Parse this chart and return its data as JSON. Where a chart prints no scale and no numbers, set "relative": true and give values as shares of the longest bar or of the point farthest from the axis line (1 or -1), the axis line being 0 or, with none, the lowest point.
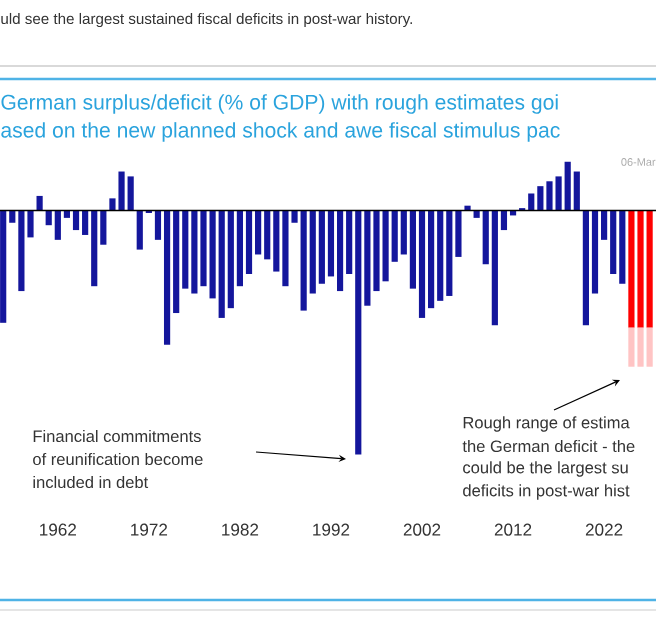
{
  "chart_data": {
    "type": "bar",
    "relative": true,
    "stacked": true,
    "title": "German surplus/deficit (% of GDP) with rough estimates goi",
    "subtitle": "ased on the new planned shock and awe fiscal stimulus pac",
    "annotations": [
      "uld see the largest sustained fiscal deficits in post-war history.",
      "06-Mar",
      "Financial commitments",
      "of reunification become",
      "included in debt",
      "Rough range of estima",
      "the German deficit - the",
      "could be the largest su",
      "deficits in post-war hist"
    ],
    "categories": [
      null,
      null,
      null,
      null,
      null,
      null,
      "1962",
      null,
      null,
      null,
      null,
      null,
      null,
      null,
      null,
      null,
      "1972",
      null,
      null,
      null,
      null,
      null,
      null,
      null,
      null,
      null,
      "1982",
      null,
      null,
      null,
      null,
      null,
      null,
      null,
      null,
      null,
      "1992",
      null,
      null,
      null,
      null,
      null,
      null,
      null,
      null,
      null,
      "2002",
      null,
      null,
      null,
      null,
      null,
      null,
      null,
      null,
      null,
      "2012",
      null,
      null,
      null,
      null,
      null,
      null,
      null,
      null,
      null,
      "2022",
      null,
      null,
      null,
      null,
      null
    ],
    "series": [
      {
        "color": "#14169c",
        "values": [
          -0.46,
          -0.05,
          -0.33,
          -0.11,
          0.06,
          -0.06,
          -0.12,
          -0.03,
          -0.08,
          -0.1,
          -0.31,
          -0.14,
          0.05,
          0.16,
          0.14,
          -0.16,
          -0.01,
          -0.12,
          -0.55,
          -0.42,
          -0.32,
          -0.34,
          -0.31,
          -0.36,
          -0.44,
          -0.4,
          -0.31,
          -0.26,
          -0.18,
          -0.2,
          -0.25,
          -0.31,
          -0.05,
          -0.41,
          -0.34,
          -0.3,
          -0.27,
          -0.33,
          -0.26,
          -1,
          -0.39,
          -0.33,
          -0.29,
          -0.21,
          -0.18,
          -0.32,
          -0.44,
          -0.4,
          -0.37,
          -0.35,
          -0.19,
          0.02,
          -0.03,
          -0.22,
          -0.47,
          -0.08,
          -0.02,
          0.01,
          0.07,
          0.1,
          0.12,
          0.14,
          0.2,
          0.16,
          -0.47,
          -0.34,
          -0.12,
          -0.26,
          -0.3,
          null,
          null,
          null
        ]
      },
      {
        "color": "#ff0000",
        "values": [
          null,
          null,
          null,
          null,
          null,
          null,
          null,
          null,
          null,
          null,
          null,
          null,
          null,
          null,
          null,
          null,
          null,
          null,
          null,
          null,
          null,
          null,
          null,
          null,
          null,
          null,
          null,
          null,
          null,
          null,
          null,
          null,
          null,
          null,
          null,
          null,
          null,
          null,
          null,
          null,
          null,
          null,
          null,
          null,
          null,
          null,
          null,
          null,
          null,
          null,
          null,
          null,
          null,
          null,
          null,
          null,
          null,
          null,
          null,
          null,
          null,
          null,
          null,
          null,
          null,
          null,
          null,
          null,
          null,
          -0.48,
          -0.48,
          -0.48
        ]
      },
      {
        "color": "#ffc4c4",
        "values": [
          null,
          null,
          null,
          null,
          null,
          null,
          null,
          null,
          null,
          null,
          null,
          null,
          null,
          null,
          null,
          null,
          null,
          null,
          null,
          null,
          null,
          null,
          null,
          null,
          null,
          null,
          null,
          null,
          null,
          null,
          null,
          null,
          null,
          null,
          null,
          null,
          null,
          null,
          null,
          null,
          null,
          null,
          null,
          null,
          null,
          null,
          null,
          null,
          null,
          null,
          null,
          null,
          null,
          null,
          null,
          null,
          null,
          null,
          null,
          null,
          null,
          null,
          null,
          null,
          null,
          null,
          null,
          null,
          null,
          -0.16,
          -0.16,
          -0.16
        ]
      }
    ]
  }
}
